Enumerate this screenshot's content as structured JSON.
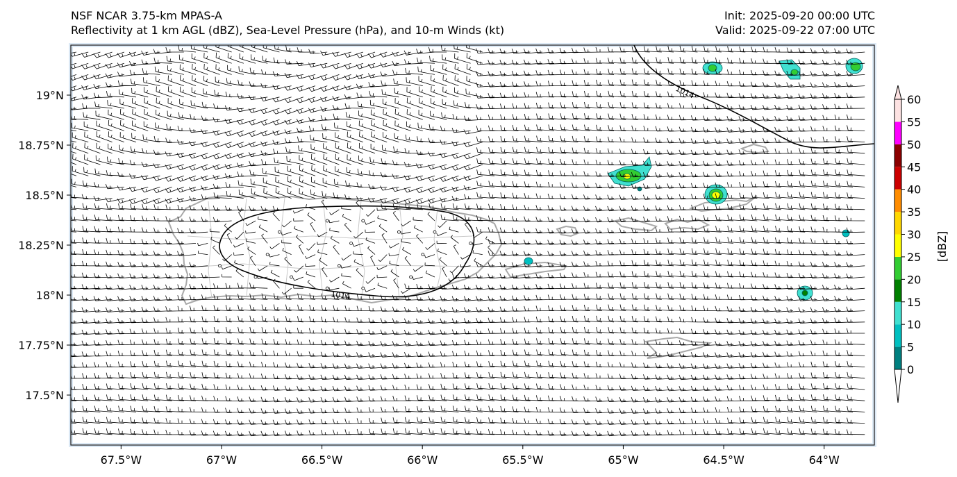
{
  "title": {
    "line1": "NSF NCAR 3.75-km MPAS-A",
    "line2": "Reflectivity at 1 km AGL (dBZ), Sea-Level Pressure (hPa), and 10-m Winds (kt)",
    "init": "Init: 2025-09-20 00:00 UTC",
    "valid": "Valid: 2025-09-22 07:00 UTC"
  },
  "map": {
    "lon_range": [
      -67.75,
      -63.75
    ],
    "lat_range": [
      17.25,
      19.25
    ],
    "lon_ticks": [
      {
        "value": -67.5,
        "label": "67.5°W"
      },
      {
        "value": -67.0,
        "label": "67°W"
      },
      {
        "value": -66.5,
        "label": "66.5°W"
      },
      {
        "value": -66.0,
        "label": "66°W"
      },
      {
        "value": -65.5,
        "label": "65.5°W"
      },
      {
        "value": -65.0,
        "label": "65°W"
      },
      {
        "value": -64.5,
        "label": "64.5°W"
      },
      {
        "value": -64.0,
        "label": "64°W"
      }
    ],
    "lat_ticks": [
      {
        "value": 19.0,
        "label": "19°N"
      },
      {
        "value": 18.75,
        "label": "18.75°N"
      },
      {
        "value": 18.5,
        "label": "18.5°N"
      },
      {
        "value": 18.25,
        "label": "18.25°N"
      },
      {
        "value": 18.0,
        "label": "18°N"
      },
      {
        "value": 17.75,
        "label": "17.75°N"
      },
      {
        "value": 17.5,
        "label": "17.5°N"
      }
    ],
    "isobar_label": "1014",
    "colors": {
      "coast": "#a9a9a9",
      "isobar": "#000000",
      "ocean_edge": "#dce9f5"
    }
  },
  "colorbar": {
    "label": "[dBZ]",
    "levels": [
      0,
      5,
      10,
      15,
      20,
      25,
      30,
      35,
      40,
      45,
      50,
      55,
      60
    ],
    "tick_labels": [
      "0",
      "5",
      "10",
      "15",
      "20",
      "25",
      "30",
      "35",
      "40",
      "45",
      "50",
      "55",
      "60"
    ],
    "colors": [
      "#008080",
      "#00c0c0",
      "#40e0d0",
      "#008000",
      "#32cd32",
      "#ffff00",
      "#ffd700",
      "#ff8c00",
      "#cc0000",
      "#8b0000",
      "#ff00ff",
      "#fde2e2"
    ]
  }
}
